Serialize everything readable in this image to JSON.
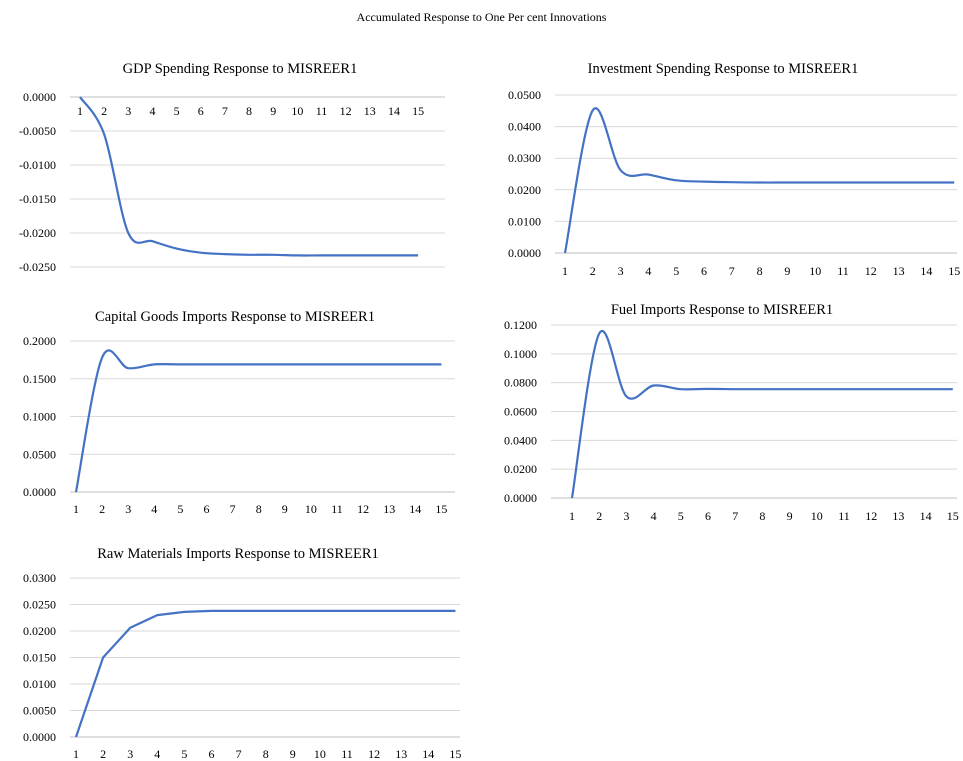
{
  "figure": {
    "title": "Accumulated Response to One Per cent Innovations"
  },
  "chart_data": [
    {
      "type": "line",
      "title": "GDP Spending Response to MISREER1",
      "xlabel": "",
      "ylabel": "",
      "categories": [
        "1",
        "2",
        "3",
        "4",
        "5",
        "6",
        "7",
        "8",
        "9",
        "10",
        "11",
        "12",
        "13",
        "14",
        "15"
      ],
      "y_ticks": [
        "0.0000",
        "-0.0050",
        "-0.0100",
        "-0.0150",
        "-0.0200",
        "-0.0250"
      ],
      "ylim": [
        -0.025,
        0.0
      ],
      "grid": true,
      "x_axis_position": "top",
      "smooth": true,
      "series": [
        {
          "values": [
            0.0,
            -0.0055,
            -0.02,
            -0.0212,
            -0.0223,
            -0.0229,
            -0.0231,
            -0.0232,
            -0.0232,
            -0.0233,
            -0.0233,
            -0.0233,
            -0.0233,
            -0.0233,
            -0.0233
          ]
        }
      ]
    },
    {
      "type": "line",
      "title": "Investment Spending Response to MISREER1",
      "xlabel": "",
      "ylabel": "",
      "categories": [
        "1",
        "2",
        "3",
        "4",
        "5",
        "6",
        "7",
        "8",
        "9",
        "10",
        "11",
        "12",
        "13",
        "14",
        "15"
      ],
      "y_ticks": [
        "0.0000",
        "0.0100",
        "0.0200",
        "0.0300",
        "0.0400",
        "0.0500"
      ],
      "ylim": [
        0.0,
        0.05
      ],
      "grid": true,
      "x_axis_position": "bottom",
      "smooth": true,
      "series": [
        {
          "values": [
            0.0,
            0.0452,
            0.0262,
            0.0248,
            0.023,
            0.0226,
            0.0224,
            0.0223,
            0.0223,
            0.0223,
            0.0223,
            0.0223,
            0.0223,
            0.0223,
            0.0223
          ]
        }
      ]
    },
    {
      "type": "line",
      "title": "Capital Goods Imports Response to MISREER1",
      "xlabel": "",
      "ylabel": "",
      "categories": [
        "1",
        "2",
        "3",
        "4",
        "5",
        "6",
        "7",
        "8",
        "9",
        "10",
        "11",
        "12",
        "13",
        "14",
        "15"
      ],
      "y_ticks": [
        "0.0000",
        "0.0500",
        "0.1000",
        "0.1500",
        "0.2000"
      ],
      "ylim": [
        0.0,
        0.2
      ],
      "grid": true,
      "x_axis_position": "bottom",
      "smooth": true,
      "series": [
        {
          "values": [
            0.0,
            0.178,
            0.164,
            0.169,
            0.169,
            0.169,
            0.169,
            0.169,
            0.169,
            0.169,
            0.169,
            0.169,
            0.169,
            0.169,
            0.169
          ]
        }
      ]
    },
    {
      "type": "line",
      "title": "Fuel Imports Response to MISREER1",
      "xlabel": "",
      "ylabel": "",
      "categories": [
        "1",
        "2",
        "3",
        "4",
        "5",
        "6",
        "7",
        "8",
        "9",
        "10",
        "11",
        "12",
        "13",
        "14",
        "15"
      ],
      "y_ticks": [
        "0.0000",
        "0.0200",
        "0.0400",
        "0.0600",
        "0.0800",
        "0.1000",
        "0.1200"
      ],
      "ylim": [
        0.0,
        0.12
      ],
      "grid": true,
      "x_axis_position": "bottom",
      "smooth": true,
      "series": [
        {
          "values": [
            0.0,
            0.114,
            0.0705,
            0.078,
            0.0755,
            0.0757,
            0.0755,
            0.0755,
            0.0755,
            0.0755,
            0.0755,
            0.0755,
            0.0755,
            0.0755,
            0.0755
          ]
        }
      ]
    },
    {
      "type": "line",
      "title": "Raw Materials Imports Response to MISREER1",
      "xlabel": "",
      "ylabel": "",
      "categories": [
        "1",
        "2",
        "3",
        "4",
        "5",
        "6",
        "7",
        "8",
        "9",
        "10",
        "11",
        "12",
        "13",
        "14",
        "15"
      ],
      "y_ticks": [
        "0.0000",
        "0.0050",
        "0.0100",
        "0.0150",
        "0.0200",
        "0.0250",
        "0.0300"
      ],
      "ylim": [
        0.0,
        0.03
      ],
      "grid": true,
      "x_axis_position": "bottom",
      "smooth": false,
      "series": [
        {
          "values": [
            0.0,
            0.015,
            0.0206,
            0.023,
            0.0236,
            0.0238,
            0.0238,
            0.0238,
            0.0238,
            0.0238,
            0.0238,
            0.0238,
            0.0238,
            0.0238,
            0.0238
          ]
        }
      ]
    }
  ]
}
